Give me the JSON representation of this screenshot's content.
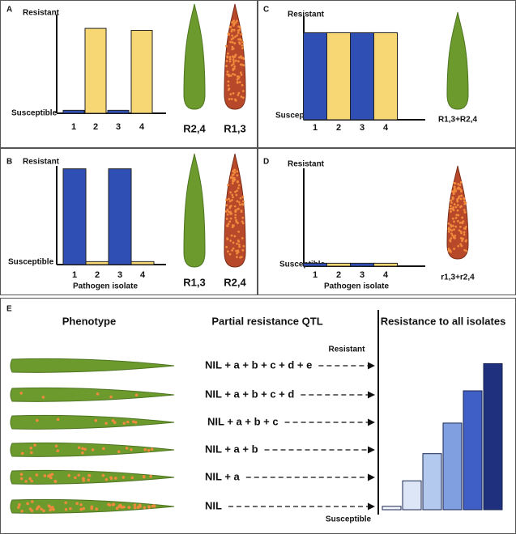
{
  "chart_data": [
    {
      "type": "bar",
      "panel": "A",
      "ylabel_top": "Resistant",
      "ylabel_bottom": "Susceptible",
      "categories": [
        "1",
        "2",
        "3",
        "4"
      ],
      "values": [
        3,
        86,
        3,
        84
      ],
      "colors": [
        "#2f4fb5",
        "#f7d774",
        "#2f4fb5",
        "#f7d774"
      ],
      "ylim": [
        0,
        100
      ],
      "leaves": [
        {
          "label": "R2,4",
          "infected": false
        },
        {
          "label": "R1,3",
          "infected": true
        }
      ]
    },
    {
      "type": "bar",
      "panel": "B",
      "ylabel_top": "Resistant",
      "ylabel_bottom": "Susceptible",
      "xlabel": "Pathogen isolate",
      "categories": [
        "1",
        "2",
        "3",
        "4"
      ],
      "values": [
        97,
        3,
        97,
        3
      ],
      "colors": [
        "#2f4fb5",
        "#f7d774",
        "#2f4fb5",
        "#f7d774"
      ],
      "ylim": [
        0,
        100
      ],
      "leaves": [
        {
          "label": "R1,3",
          "infected": false
        },
        {
          "label": "R2,4",
          "infected": true
        }
      ]
    },
    {
      "type": "bar",
      "panel": "C",
      "ylabel_top": "Resistant",
      "ylabel_bottom": "Susceptible",
      "categories": [
        "1",
        "2",
        "3",
        "4"
      ],
      "values": [
        84,
        84,
        84,
        84
      ],
      "colors": [
        "#2f4fb5",
        "#f7d774",
        "#2f4fb5",
        "#f7d774"
      ],
      "ylim": [
        0,
        100
      ],
      "leaves": [
        {
          "label": "R1,3+R2,4",
          "infected": false
        }
      ]
    },
    {
      "type": "bar",
      "panel": "D",
      "ylabel_top": "Resistant",
      "ylabel_bottom": "Susceptible",
      "xlabel": "Pathogen isolate",
      "categories": [
        "1",
        "2",
        "3",
        "4"
      ],
      "values": [
        3,
        3,
        3,
        3
      ],
      "colors": [
        "#2f4fb5",
        "#f7d774",
        "#2f4fb5",
        "#f7d774"
      ],
      "ylim": [
        0,
        100
      ],
      "leaves": [
        {
          "label": "r1,3+r2,4",
          "infected": true
        }
      ]
    },
    {
      "type": "bar",
      "panel": "E",
      "phenotype_header": "Phenotype",
      "qtl_header": "Partial resistance QTL",
      "title": "Resistance to all isolates",
      "ylabel_top": "Resistant",
      "ylabel_bottom": "Susceptible",
      "qtl_labels": [
        "NIL + a + b + c + d + e",
        "NIL + a + b + c + d",
        "NIL + a + b + c",
        "NIL + a + b",
        "NIL + a",
        "NIL"
      ],
      "values": [
        2,
        17,
        33,
        51,
        70,
        86
      ],
      "colors": [
        "#f2f5fb",
        "#dce6f6",
        "#b3c9ee",
        "#7f9fe0",
        "#3f5fc6",
        "#1f307f"
      ],
      "ylim": [
        0,
        100
      ]
    }
  ]
}
